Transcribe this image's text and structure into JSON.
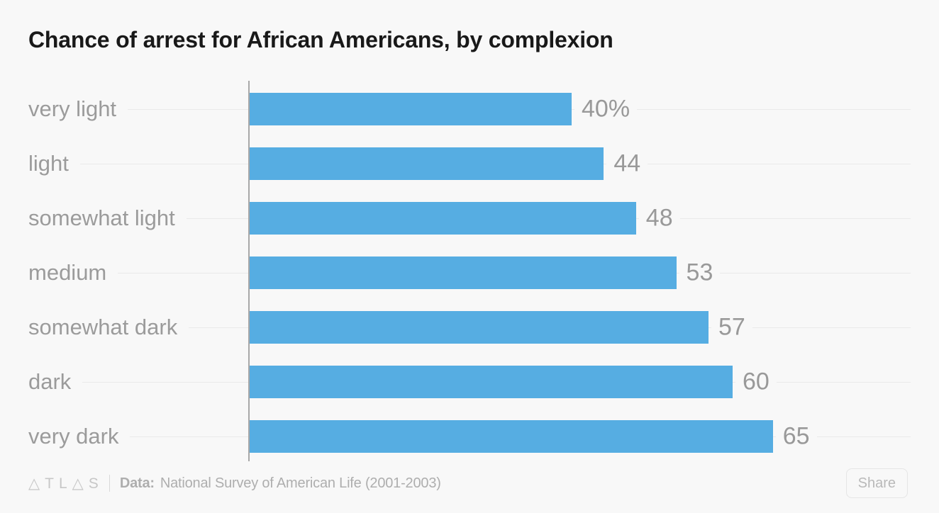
{
  "title": "Chance of arrest for African Americans, by complexion",
  "chart_data": {
    "type": "bar",
    "orientation": "horizontal",
    "title": "Chance of arrest for African Americans, by complexion",
    "categories": [
      "very light",
      "light",
      "somewhat light",
      "medium",
      "somewhat dark",
      "dark",
      "very dark"
    ],
    "values": [
      40,
      44,
      48,
      53,
      57,
      60,
      65
    ],
    "value_labels": [
      "40%",
      "44",
      "48",
      "53",
      "57",
      "60",
      "65"
    ],
    "xlabel": "",
    "ylabel": "",
    "xlim": [
      0,
      65
    ],
    "unit": "percent",
    "bar_color": "#56ade2",
    "grid": "horizontal-row-guides",
    "legend": "none"
  },
  "footer": {
    "logo": "ATLAS",
    "data_prefix": "Data:",
    "source": "National Survey of American Life (2001-2003)",
    "share_label": "Share"
  },
  "colors": {
    "background": "#f8f8f8",
    "bar": "#56ade2",
    "title_text": "#191919",
    "category_text": "#9b9b9b",
    "value_text": "#999999",
    "gridline": "#eaeaea",
    "axis_line": "#a8a8a8",
    "footer_text": "#aeaeae"
  }
}
